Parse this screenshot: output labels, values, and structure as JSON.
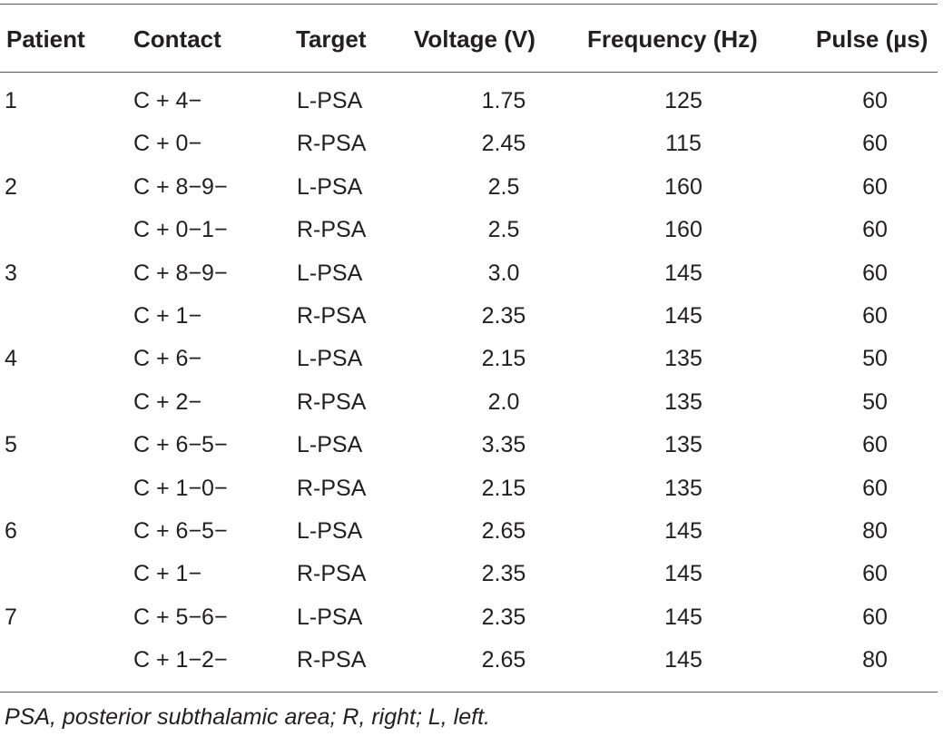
{
  "table": {
    "headers": {
      "patient": "Patient",
      "contact": "Contact",
      "target": "Target",
      "voltage": "Voltage (V)",
      "frequency": "Frequency (Hz)",
      "pulse": "Pulse (µs)"
    },
    "rows": [
      {
        "patient": "1",
        "contact": "C + 4−",
        "target": "L-PSA",
        "voltage": "1.75",
        "frequency": "125",
        "pulse": "60"
      },
      {
        "patient": "",
        "contact": "C + 0−",
        "target": "R-PSA",
        "voltage": "2.45",
        "frequency": "115",
        "pulse": "60"
      },
      {
        "patient": "2",
        "contact": "C + 8−9−",
        "target": "L-PSA",
        "voltage": "2.5",
        "frequency": "160",
        "pulse": "60"
      },
      {
        "patient": "",
        "contact": "C + 0−1−",
        "target": "R-PSA",
        "voltage": "2.5",
        "frequency": "160",
        "pulse": "60"
      },
      {
        "patient": "3",
        "contact": "C + 8−9−",
        "target": "L-PSA",
        "voltage": "3.0",
        "frequency": "145",
        "pulse": "60"
      },
      {
        "patient": "",
        "contact": "C + 1−",
        "target": "R-PSA",
        "voltage": "2.35",
        "frequency": "145",
        "pulse": "60"
      },
      {
        "patient": "4",
        "contact": "C + 6−",
        "target": "L-PSA",
        "voltage": "2.15",
        "frequency": "135",
        "pulse": "50"
      },
      {
        "patient": "",
        "contact": "C + 2−",
        "target": "R-PSA",
        "voltage": "2.0",
        "frequency": "135",
        "pulse": "50"
      },
      {
        "patient": "5",
        "contact": "C + 6−5−",
        "target": "L-PSA",
        "voltage": "3.35",
        "frequency": "135",
        "pulse": "60"
      },
      {
        "patient": "",
        "contact": "C + 1−0−",
        "target": "R-PSA",
        "voltage": "2.15",
        "frequency": "135",
        "pulse": "60"
      },
      {
        "patient": "6",
        "contact": "C + 6−5−",
        "target": "L-PSA",
        "voltage": "2.65",
        "frequency": "145",
        "pulse": "80"
      },
      {
        "patient": "",
        "contact": "C + 1−",
        "target": "R-PSA",
        "voltage": "2.35",
        "frequency": "145",
        "pulse": "60"
      },
      {
        "patient": "7",
        "contact": "C + 5−6−",
        "target": "L-PSA",
        "voltage": "2.35",
        "frequency": "145",
        "pulse": "60"
      },
      {
        "patient": "",
        "contact": "C + 1−2−",
        "target": "R-PSA",
        "voltage": "2.65",
        "frequency": "145",
        "pulse": "80"
      }
    ],
    "footnote": "PSA, posterior subthalamic area; R, right; L, left."
  }
}
